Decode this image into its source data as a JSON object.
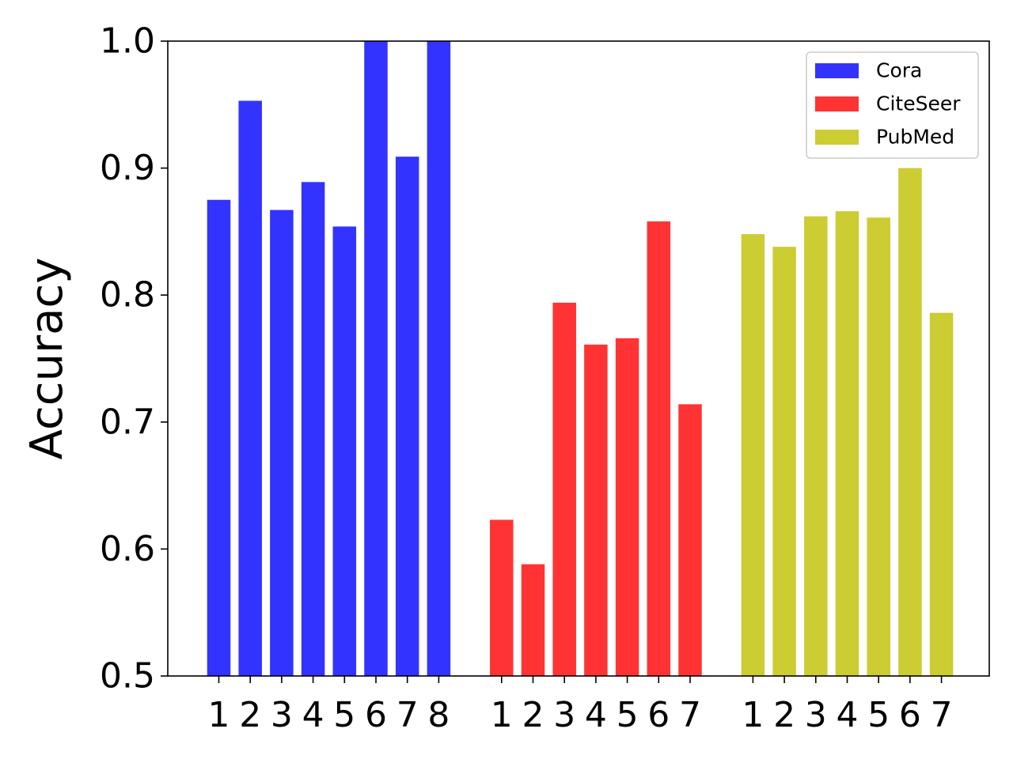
{
  "chart_data": {
    "type": "bar",
    "ylabel": "Accuracy",
    "ylim": [
      0.5,
      1.0
    ],
    "yticks": [
      "0.5",
      "0.6",
      "0.7",
      "0.8",
      "0.9",
      "1.0"
    ],
    "grid": false,
    "legend_position": "top-right",
    "groups": [
      {
        "name": "Cora",
        "color": "#3333ff",
        "categories": [
          "1",
          "2",
          "3",
          "4",
          "5",
          "6",
          "7",
          "8"
        ],
        "values": [
          0.875,
          0.953,
          0.867,
          0.889,
          0.854,
          1.0,
          0.909,
          1.0
        ]
      },
      {
        "name": "CiteSeer",
        "color": "#ff3333",
        "categories": [
          "1",
          "2",
          "3",
          "4",
          "5",
          "6",
          "7"
        ],
        "values": [
          0.623,
          0.588,
          0.794,
          0.761,
          0.766,
          0.858,
          0.714
        ]
      },
      {
        "name": "PubMed",
        "color": "#cccc33",
        "categories": [
          "1",
          "2",
          "3",
          "4",
          "5",
          "6",
          "7"
        ],
        "values": [
          0.848,
          0.838,
          0.862,
          0.866,
          0.861,
          0.9,
          0.786
        ]
      }
    ]
  }
}
